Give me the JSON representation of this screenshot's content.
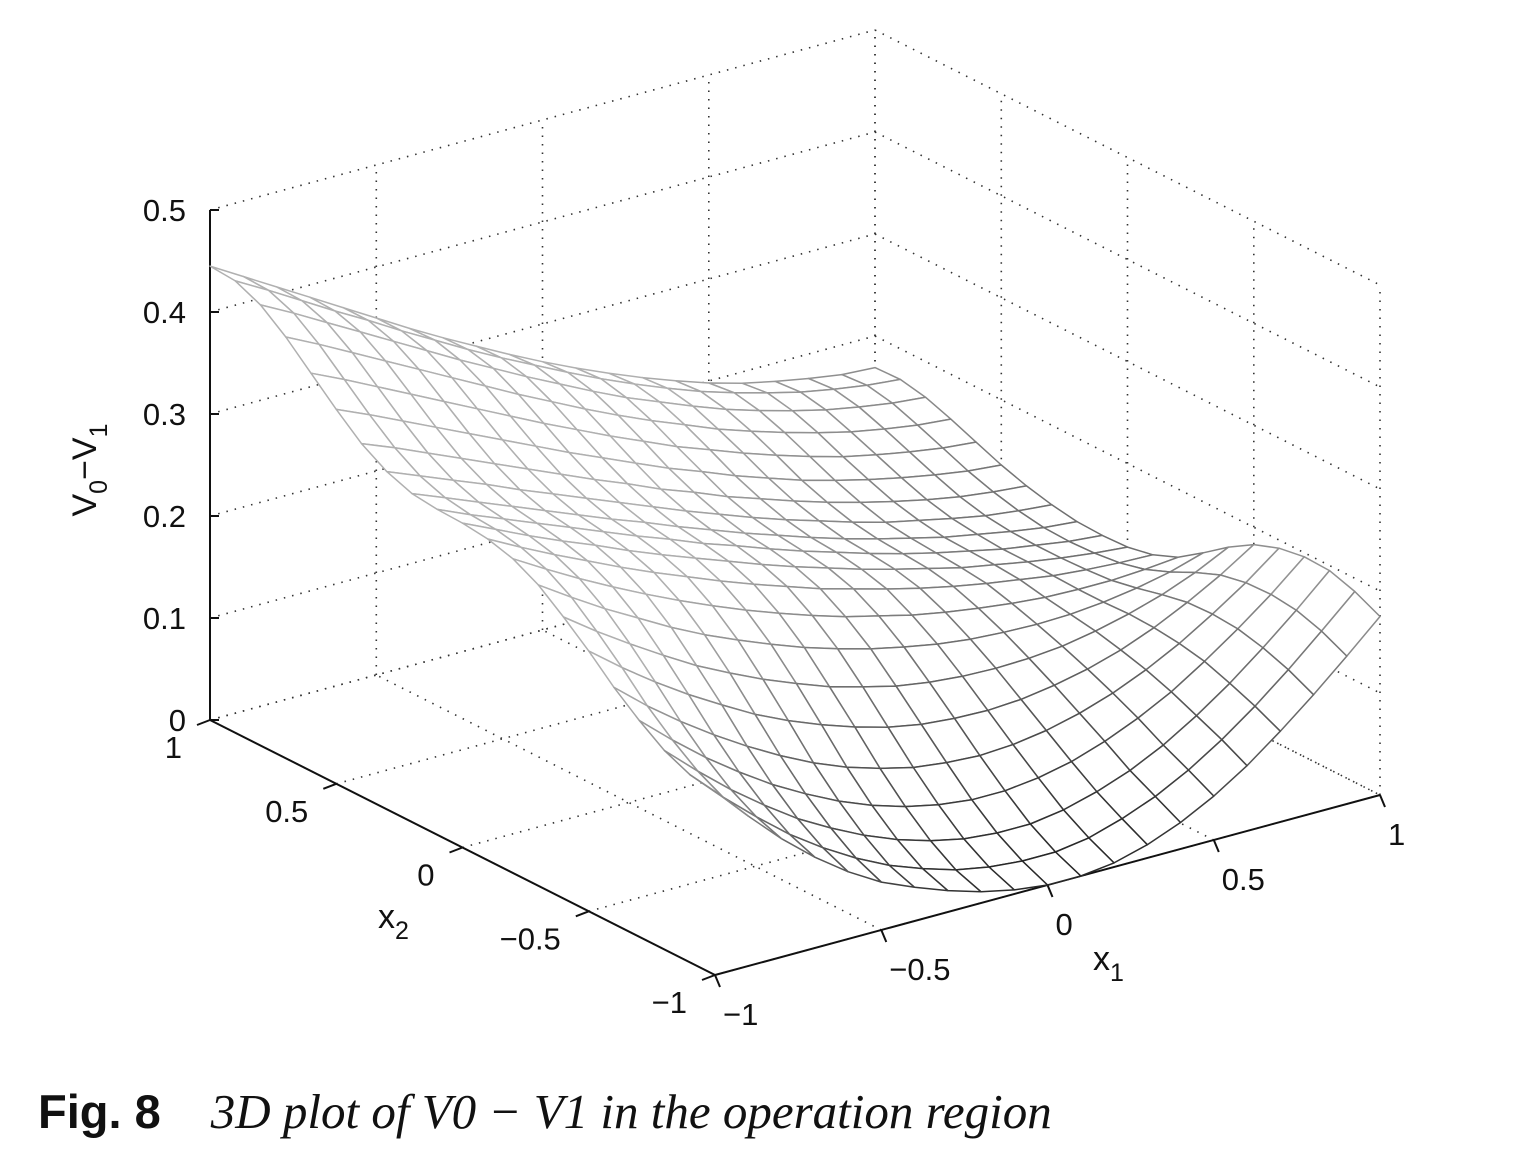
{
  "caption": {
    "figure_label": "Fig. 8",
    "text": "3D plot of V0 − V1 in the operation region"
  },
  "chart_data": {
    "type": "surface",
    "title": "",
    "xlabel": "x1",
    "ylabel": "x2",
    "zlabel": "V0−V1",
    "xlim": [
      -1,
      1
    ],
    "ylim": [
      -1,
      1
    ],
    "zlim": [
      0,
      0.5
    ],
    "grid": true,
    "x_ticks": [
      "−1",
      "−0.5",
      "0",
      "0.5",
      "1"
    ],
    "y_ticks": [
      "−1",
      "−0.5",
      "0",
      "0.5",
      "1"
    ],
    "z_ticks": [
      "0",
      "0.1",
      "0.2",
      "0.3",
      "0.4",
      "0.5"
    ],
    "mesh": {
      "x": [
        -1,
        -0.9,
        -0.8,
        -0.7,
        -0.6,
        -0.5,
        -0.4,
        -0.3,
        -0.2,
        -0.1,
        0,
        0.1,
        0.2,
        0.3,
        0.4,
        0.5,
        0.6,
        0.7,
        0.8,
        0.9,
        1
      ],
      "y": [
        -1,
        -0.9,
        -0.8,
        -0.7,
        -0.6,
        -0.5,
        -0.4,
        -0.3,
        -0.2,
        -0.1,
        0,
        0.1,
        0.2,
        0.3,
        0.4,
        0.5,
        0.6,
        0.7,
        0.8,
        0.9,
        1
      ],
      "z": [
        [
          0.18,
          0.147,
          0.116,
          0.089,
          0.066,
          0.047,
          0.033,
          0.021,
          0.011,
          0.004,
          0.0,
          0.0,
          0.004,
          0.013,
          0.026,
          0.043,
          0.064,
          0.089,
          0.116,
          0.145,
          0.175
        ],
        [
          0.184,
          0.153,
          0.125,
          0.099,
          0.077,
          0.058,
          0.042,
          0.03,
          0.02,
          0.014,
          0.011,
          0.011,
          0.016,
          0.026,
          0.039,
          0.056,
          0.077,
          0.101,
          0.128,
          0.157,
          0.187
        ],
        [
          0.195,
          0.166,
          0.139,
          0.115,
          0.093,
          0.075,
          0.059,
          0.046,
          0.036,
          0.029,
          0.026,
          0.026,
          0.031,
          0.04,
          0.052,
          0.068,
          0.088,
          0.111,
          0.137,
          0.165,
          0.195
        ],
        [
          0.212,
          0.184,
          0.158,
          0.135,
          0.114,
          0.096,
          0.08,
          0.067,
          0.057,
          0.05,
          0.046,
          0.046,
          0.05,
          0.057,
          0.068,
          0.082,
          0.099,
          0.12,
          0.143,
          0.168,
          0.196
        ],
        [
          0.232,
          0.205,
          0.181,
          0.159,
          0.139,
          0.121,
          0.105,
          0.092,
          0.082,
          0.074,
          0.07,
          0.068,
          0.07,
          0.075,
          0.083,
          0.094,
          0.108,
          0.125,
          0.145,
          0.167,
          0.192
        ],
        [
          0.255,
          0.23,
          0.207,
          0.186,
          0.167,
          0.149,
          0.134,
          0.121,
          0.11,
          0.101,
          0.095,
          0.092,
          0.091,
          0.093,
          0.098,
          0.105,
          0.115,
          0.128,
          0.144,
          0.162,
          0.183
        ],
        [
          0.276,
          0.253,
          0.232,
          0.212,
          0.193,
          0.177,
          0.162,
          0.149,
          0.137,
          0.128,
          0.12,
          0.115,
          0.112,
          0.111,
          0.112,
          0.115,
          0.121,
          0.129,
          0.139,
          0.152,
          0.168
        ],
        [
          0.295,
          0.274,
          0.254,
          0.236,
          0.218,
          0.202,
          0.188,
          0.175,
          0.163,
          0.153,
          0.144,
          0.137,
          0.131,
          0.127,
          0.125,
          0.124,
          0.125,
          0.128,
          0.133,
          0.14,
          0.15
        ],
        [
          0.308,
          0.289,
          0.271,
          0.254,
          0.238,
          0.223,
          0.209,
          0.196,
          0.184,
          0.173,
          0.163,
          0.155,
          0.147,
          0.141,
          0.136,
          0.132,
          0.129,
          0.128,
          0.128,
          0.13,
          0.133
        ],
        [
          0.315,
          0.298,
          0.282,
          0.267,
          0.252,
          0.238,
          0.225,
          0.212,
          0.2,
          0.189,
          0.178,
          0.169,
          0.16,
          0.152,
          0.145,
          0.139,
          0.134,
          0.129,
          0.126,
          0.124,
          0.123
        ],
        [
          0.318,
          0.303,
          0.288,
          0.274,
          0.261,
          0.247,
          0.234,
          0.222,
          0.21,
          0.198,
          0.187,
          0.177,
          0.167,
          0.158,
          0.15,
          0.142,
          0.136,
          0.13,
          0.125,
          0.121,
          0.118
        ],
        [
          0.319,
          0.305,
          0.292,
          0.279,
          0.266,
          0.253,
          0.24,
          0.228,
          0.215,
          0.204,
          0.192,
          0.181,
          0.171,
          0.161,
          0.152,
          0.144,
          0.137,
          0.13,
          0.125,
          0.12,
          0.117
        ],
        [
          0.322,
          0.309,
          0.296,
          0.283,
          0.27,
          0.257,
          0.244,
          0.232,
          0.219,
          0.207,
          0.195,
          0.184,
          0.173,
          0.163,
          0.154,
          0.146,
          0.138,
          0.132,
          0.126,
          0.121,
          0.118
        ],
        [
          0.331,
          0.318,
          0.305,
          0.292,
          0.278,
          0.265,
          0.252,
          0.239,
          0.226,
          0.213,
          0.201,
          0.189,
          0.178,
          0.168,
          0.158,
          0.149,
          0.142,
          0.135,
          0.129,
          0.125,
          0.122
        ],
        [
          0.346,
          0.333,
          0.319,
          0.305,
          0.291,
          0.277,
          0.263,
          0.249,
          0.236,
          0.222,
          0.21,
          0.197,
          0.186,
          0.175,
          0.165,
          0.156,
          0.148,
          0.141,
          0.135,
          0.131,
          0.128
        ],
        [
          0.367,
          0.353,
          0.338,
          0.323,
          0.308,
          0.293,
          0.278,
          0.263,
          0.249,
          0.235,
          0.221,
          0.209,
          0.196,
          0.185,
          0.174,
          0.165,
          0.157,
          0.15,
          0.144,
          0.139,
          0.136
        ],
        [
          0.39,
          0.375,
          0.359,
          0.343,
          0.327,
          0.311,
          0.295,
          0.279,
          0.264,
          0.249,
          0.235,
          0.221,
          0.209,
          0.197,
          0.186,
          0.176,
          0.167,
          0.16,
          0.154,
          0.149,
          0.146
        ],
        [
          0.413,
          0.397,
          0.38,
          0.363,
          0.346,
          0.329,
          0.312,
          0.295,
          0.279,
          0.263,
          0.248,
          0.234,
          0.221,
          0.208,
          0.197,
          0.187,
          0.178,
          0.17,
          0.164,
          0.159,
          0.156
        ],
        [
          0.432,
          0.415,
          0.397,
          0.379,
          0.361,
          0.343,
          0.325,
          0.308,
          0.291,
          0.275,
          0.259,
          0.244,
          0.231,
          0.218,
          0.206,
          0.196,
          0.187,
          0.179,
          0.173,
          0.168,
          0.165
        ],
        [
          0.443,
          0.425,
          0.406,
          0.387,
          0.369,
          0.35,
          0.332,
          0.314,
          0.297,
          0.281,
          0.265,
          0.25,
          0.236,
          0.223,
          0.211,
          0.201,
          0.192,
          0.184,
          0.178,
          0.173,
          0.17
        ],
        [
          0.445,
          0.426,
          0.407,
          0.388,
          0.369,
          0.35,
          0.331,
          0.313,
          0.296,
          0.279,
          0.263,
          0.248,
          0.234,
          0.221,
          0.209,
          0.198,
          0.189,
          0.182,
          0.176,
          0.171,
          0.169
        ]
      ]
    }
  }
}
